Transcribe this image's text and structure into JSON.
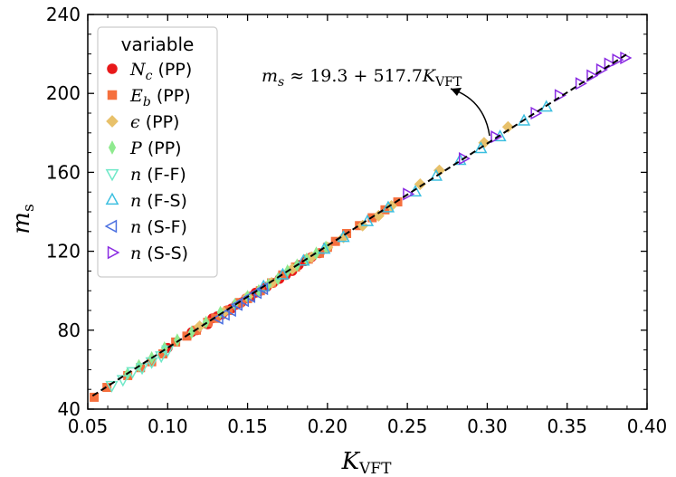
{
  "chart_data": {
    "type": "scatter",
    "xlabel": "K",
    "xlabel_sub": "VFT",
    "ylabel": "m",
    "ylabel_sub": "s",
    "xlim": [
      0.05,
      0.4
    ],
    "ylim": [
      40,
      240
    ],
    "x_ticks": [
      "0.05",
      "0.10",
      "0.15",
      "0.20",
      "0.25",
      "0.30",
      "0.35",
      "0.40"
    ],
    "y_ticks": [
      "40",
      "80",
      "120",
      "160",
      "200",
      "240"
    ],
    "grid": false,
    "legend": {
      "title": "variable",
      "placement": "top-left"
    },
    "fit_line": {
      "intercept": 19.3,
      "slope": 517.7,
      "style": "dashed",
      "color": "#000000",
      "x_range": [
        0.053,
        0.389
      ],
      "annotation_math": "m",
      "annotation_math_sub": "s",
      "annotation_eq": " ≈ 19.3 + 517.7",
      "annotation_var": "K",
      "annotation_var_sub": "VFT",
      "annotation_target": [
        0.298,
        175.6
      ]
    },
    "series": [
      {
        "name_var": "N",
        "name_sub": "c",
        "name_suffix": " (PP)",
        "marker": "circle",
        "color": "#e8191a",
        "x": [
          0.1,
          0.115,
          0.118,
          0.125,
          0.128,
          0.131,
          0.134,
          0.137,
          0.14,
          0.143,
          0.146,
          0.149,
          0.152,
          0.155,
          0.158,
          0.162,
          0.166,
          0.17,
          0.174,
          0.178,
          0.182,
          0.186,
          0.19,
          0.195,
          0.2
        ],
        "y": [
          71,
          79,
          80,
          83,
          86,
          87,
          88,
          90,
          91,
          93,
          94,
          96,
          97,
          99,
          100,
          102,
          104,
          106,
          108,
          110,
          113,
          115,
          117,
          119,
          122
        ]
      },
      {
        "name_var": "E",
        "name_sub": "b",
        "name_suffix": " (PP)",
        "marker": "square",
        "color": "#f5703e",
        "x": [
          0.054,
          0.062,
          0.075,
          0.083,
          0.09,
          0.097,
          0.105,
          0.112,
          0.118,
          0.125,
          0.13,
          0.138,
          0.145,
          0.15,
          0.158,
          0.165,
          0.172,
          0.18,
          0.188,
          0.195,
          0.2,
          0.205,
          0.212,
          0.22,
          0.228,
          0.236,
          0.244
        ],
        "y": [
          46,
          51,
          57,
          61,
          64,
          68,
          74,
          77,
          80,
          84,
          86,
          90,
          94,
          96,
          100,
          104,
          108,
          112,
          116,
          119,
          122,
          125,
          129,
          133,
          137,
          141,
          145
        ]
      },
      {
        "name_var": "ϵ",
        "name_sub": "",
        "name_suffix": " (PP)",
        "marker": "diamond",
        "color": "#e8c16a",
        "x": [
          0.12,
          0.135,
          0.15,
          0.165,
          0.178,
          0.19,
          0.2,
          0.21,
          0.222,
          0.232,
          0.24,
          0.258,
          0.27,
          0.298,
          0.313
        ],
        "y": [
          82,
          89,
          97,
          104,
          111,
          117,
          122,
          127,
          133,
          138,
          143,
          154,
          161,
          175,
          183
        ]
      },
      {
        "name_var": "P",
        "name_sub": "",
        "name_suffix": " (PP)",
        "marker": "thin-diamond",
        "color": "#8fea8f",
        "x": [
          0.075,
          0.082,
          0.09,
          0.098,
          0.106,
          0.115,
          0.124,
          0.133,
          0.142,
          0.15,
          0.157,
          0.163,
          0.169,
          0.175,
          0.181,
          0.187,
          0.193,
          0.199
        ],
        "y": [
          58,
          62,
          66,
          71,
          75,
          79,
          84,
          89,
          93,
          97,
          100,
          103,
          106,
          110,
          113,
          116,
          119,
          122
        ]
      },
      {
        "name_var": "n",
        "name_sub": "",
        "name_suffix": " (F-F)",
        "marker": "triangle-down",
        "color": "#6fe8c8",
        "x": [
          0.065,
          0.072,
          0.078,
          0.084,
          0.09,
          0.096,
          0.1
        ],
        "y": [
          52,
          55,
          59,
          61,
          64,
          67,
          70
        ]
      },
      {
        "name_var": "n",
        "name_sub": "",
        "name_suffix": " (F-S)",
        "marker": "triangle-up",
        "color": "#3cbfe0",
        "x": [
          0.16,
          0.172,
          0.185,
          0.198,
          0.21,
          0.225,
          0.238,
          0.255,
          0.268,
          0.283,
          0.296,
          0.308,
          0.323,
          0.337
        ],
        "y": [
          102,
          108,
          115,
          121,
          127,
          135,
          142,
          150,
          158,
          166,
          172,
          178,
          186,
          193
        ]
      },
      {
        "name_var": "n",
        "name_sub": "",
        "name_suffix": " (S-F)",
        "marker": "triangle-left",
        "color": "#4a6fe0",
        "x": [
          0.132,
          0.136,
          0.14,
          0.144,
          0.148,
          0.152,
          0.156,
          0.16
        ],
        "y": [
          86,
          88,
          90,
          93,
          95,
          97,
          99,
          101
        ]
      },
      {
        "name_var": "n",
        "name_sub": "",
        "name_suffix": " (S-S)",
        "marker": "triangle-right",
        "color": "#8a2be2",
        "x": [
          0.25,
          0.285,
          0.305,
          0.33,
          0.345,
          0.358,
          0.365,
          0.371,
          0.376,
          0.381,
          0.386
        ],
        "y": [
          149,
          167,
          178,
          190,
          199,
          205,
          209,
          212,
          215,
          217,
          218
        ]
      }
    ]
  }
}
